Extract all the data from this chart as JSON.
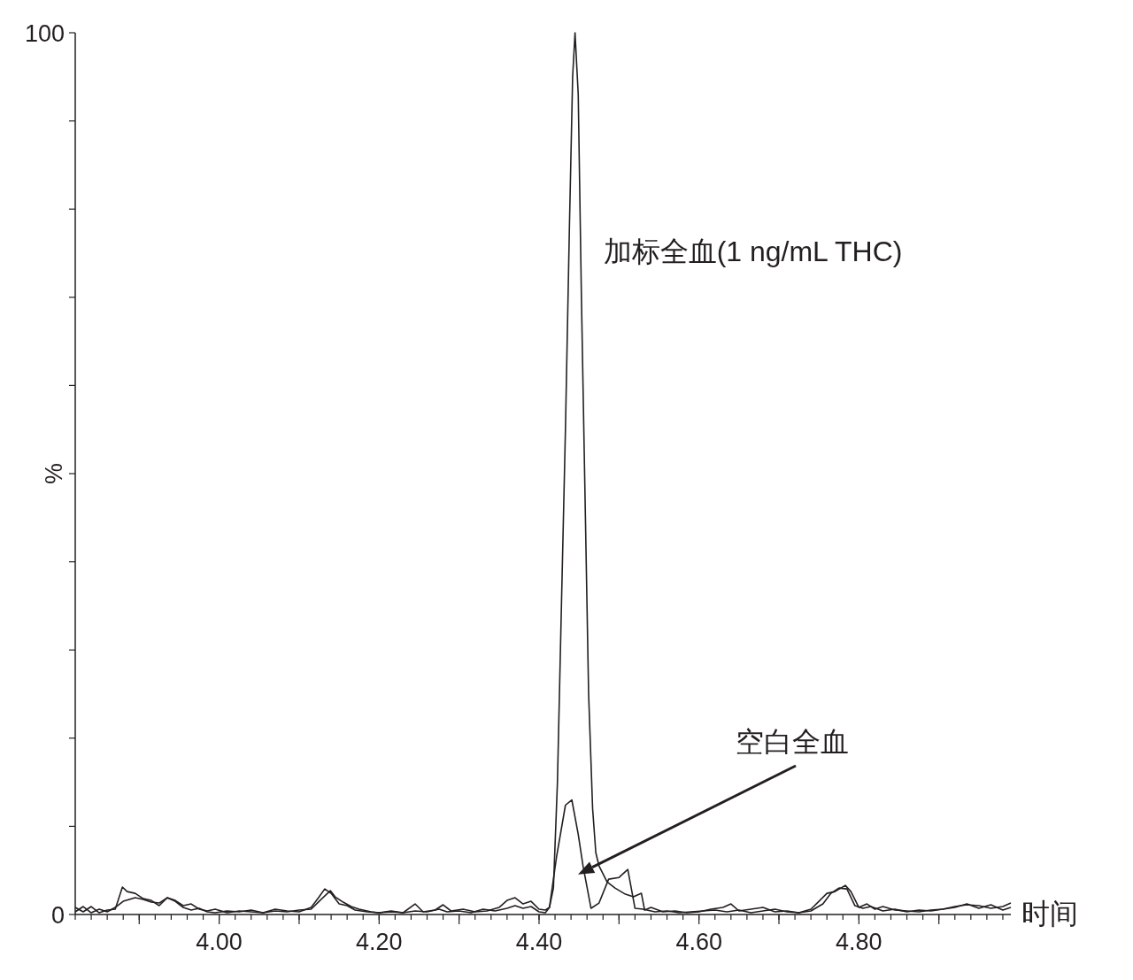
{
  "chart_data": {
    "type": "line",
    "xlabel": "时间",
    "ylabel": "%",
    "xlim": [
      3.82,
      4.99
    ],
    "ylim": [
      0,
      100
    ],
    "xticks": [
      {
        "value": 3.9,
        "label": null
      },
      {
        "value": 4.0,
        "label": "4.00"
      },
      {
        "value": 4.1,
        "label": null
      },
      {
        "value": 4.2,
        "label": "4.20"
      },
      {
        "value": 4.3,
        "label": null
      },
      {
        "value": 4.4,
        "label": "4.40"
      },
      {
        "value": 4.5,
        "label": null
      },
      {
        "value": 4.6,
        "label": "4.60"
      },
      {
        "value": 4.7,
        "label": null
      },
      {
        "value": 4.8,
        "label": "4.80"
      },
      {
        "value": 4.9,
        "label": null
      }
    ],
    "yticks": [
      0,
      {
        "value": 10,
        "label": null
      },
      {
        "value": 20,
        "label": null
      },
      {
        "value": 30,
        "label": null
      },
      {
        "value": 40,
        "label": null
      },
      {
        "value": 50,
        "label": null
      },
      {
        "value": 60,
        "label": null
      },
      {
        "value": 70,
        "label": null
      },
      {
        "value": 80,
        "label": null
      },
      {
        "value": 90,
        "label": null
      },
      100
    ],
    "grid": false,
    "marker": "none",
    "line_style": "solid",
    "series": [
      {
        "name": "加标全血(1 ng/mL THC)",
        "color": "#231f20",
        "x": [
          3.82,
          3.83,
          3.84,
          3.85,
          3.86,
          3.87,
          3.879,
          3.885,
          3.895,
          3.905,
          3.915,
          3.925,
          3.935,
          3.945,
          3.955,
          3.965,
          3.975,
          3.985,
          3.995,
          4.01,
          4.025,
          4.04,
          4.055,
          4.07,
          4.085,
          4.1,
          4.115,
          4.125,
          4.132,
          4.14,
          4.15,
          4.16,
          4.17,
          4.185,
          4.2,
          4.215,
          4.23,
          4.245,
          4.255,
          4.27,
          4.28,
          4.29,
          4.305,
          4.32,
          4.335,
          4.35,
          4.36,
          4.37,
          4.38,
          4.39,
          4.4,
          4.408,
          4.413,
          4.418,
          4.423,
          4.428,
          4.433,
          4.438,
          4.442,
          4.445,
          4.449,
          4.453,
          4.458,
          4.462,
          4.467,
          4.471,
          4.475,
          4.485,
          4.495,
          4.508,
          4.518,
          4.528,
          4.532,
          4.54,
          4.555,
          4.57,
          4.585,
          4.6,
          4.615,
          4.63,
          4.64,
          4.65,
          4.665,
          4.68,
          4.695,
          4.71,
          4.725,
          4.74,
          4.75,
          4.76,
          4.77,
          4.783,
          4.79,
          4.8,
          4.81,
          4.82,
          4.83,
          4.845,
          4.86,
          4.875,
          4.89,
          4.905,
          4.92,
          4.935,
          4.95,
          4.965,
          4.98,
          4.99
        ],
        "values": [
          0.8,
          0.3,
          0.9,
          0.2,
          0.5,
          0.6,
          3.1,
          2.6,
          2.4,
          1.8,
          1.6,
          1.0,
          1.9,
          1.5,
          0.8,
          0.5,
          0.7,
          0.3,
          0.2,
          0.4,
          0.3,
          0.5,
          0.2,
          0.6,
          0.4,
          0.3,
          0.8,
          2.0,
          2.9,
          2.4,
          1.2,
          1.0,
          0.5,
          0.3,
          0.2,
          0.4,
          0.2,
          1.2,
          0.3,
          0.5,
          1.1,
          0.4,
          0.6,
          0.3,
          0.4,
          0.8,
          1.6,
          1.9,
          1.2,
          1.5,
          0.6,
          0.5,
          0.8,
          3,
          15,
          35,
          55,
          78,
          95,
          100,
          93,
          70,
          45,
          25,
          12,
          7,
          5.5,
          3.7,
          3.0,
          2.3,
          2.0,
          2.4,
          0.5,
          0.8,
          0.3,
          0.4,
          0.2,
          0.3,
          0.6,
          0.8,
          1.2,
          0.4,
          0.6,
          0.8,
          0.3,
          0.4,
          0.2,
          0.6,
          1.5,
          2.4,
          2.6,
          3.3,
          2.6,
          0.8,
          1.2,
          0.6,
          0.9,
          0.5,
          0.4,
          0.3,
          0.5,
          0.6,
          0.9,
          1.1,
          1.0,
          0.7,
          0.9,
          1.3
        ]
      },
      {
        "name": "空白全血",
        "color": "#231f20",
        "x": [
          3.82,
          3.83,
          3.84,
          3.85,
          3.86,
          3.87,
          3.88,
          3.895,
          3.905,
          3.915,
          3.925,
          3.935,
          3.945,
          3.955,
          3.965,
          3.975,
          3.985,
          3.995,
          4.01,
          4.025,
          4.04,
          4.055,
          4.07,
          4.085,
          4.1,
          4.115,
          4.125,
          4.139,
          4.145,
          4.155,
          4.165,
          4.175,
          4.19,
          4.2,
          4.215,
          4.23,
          4.245,
          4.26,
          4.275,
          4.285,
          4.3,
          4.315,
          4.33,
          4.345,
          4.36,
          4.37,
          4.38,
          4.39,
          4.4,
          4.408,
          4.413,
          4.422,
          4.433,
          4.441,
          4.449,
          4.455,
          4.465,
          4.475,
          4.487,
          4.5,
          4.511,
          4.52,
          4.53,
          4.545,
          4.56,
          4.575,
          4.59,
          4.605,
          4.62,
          4.635,
          4.65,
          4.665,
          4.68,
          4.695,
          4.71,
          4.725,
          4.74,
          4.755,
          4.765,
          4.775,
          4.785,
          4.795,
          4.805,
          4.815,
          4.83,
          4.845,
          4.86,
          4.875,
          4.89,
          4.905,
          4.92,
          4.935,
          4.95,
          4.965,
          4.98,
          4.99
        ],
        "values": [
          0.3,
          0.9,
          0.2,
          0.6,
          0.3,
          0.8,
          1.5,
          1.9,
          1.7,
          1.4,
          1.3,
          1.9,
          1.6,
          1.0,
          1.2,
          0.6,
          0.4,
          0.6,
          0.2,
          0.4,
          0.3,
          0.2,
          0.4,
          0.3,
          0.5,
          0.6,
          1.5,
          2.7,
          2.0,
          1.4,
          0.9,
          0.6,
          0.3,
          0.2,
          0.3,
          0.2,
          0.4,
          0.3,
          0.6,
          0.3,
          0.4,
          0.2,
          0.6,
          0.4,
          0.7,
          1.0,
          0.7,
          0.9,
          0.3,
          0.2,
          0.8,
          6.6,
          12.4,
          13.0,
          9.1,
          5.5,
          0.7,
          1.3,
          4.0,
          4.2,
          5.1,
          0.7,
          0.6,
          0.3,
          0.4,
          0.2,
          0.3,
          0.4,
          0.5,
          0.3,
          0.5,
          0.2,
          0.4,
          0.6,
          0.3,
          0.2,
          0.4,
          1.2,
          2.4,
          3.0,
          2.9,
          1.0,
          0.7,
          0.9,
          0.4,
          0.6,
          0.3,
          0.5,
          0.4,
          0.6,
          0.8,
          1.2,
          0.7,
          1.1,
          0.5,
          0.8
        ]
      }
    ]
  }
}
